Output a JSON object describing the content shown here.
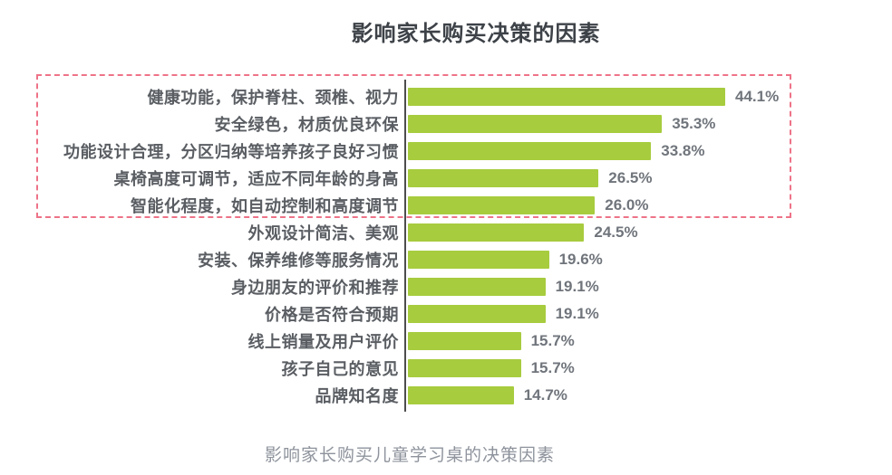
{
  "page": {
    "background": "#ffffff"
  },
  "chart_data": {
    "type": "bar",
    "orientation": "horizontal",
    "title": "影响家长购买决策的因素",
    "caption": "影响家长购买儿童学习桌的决策因素",
    "value_unit": "%",
    "xlim": [
      0,
      50
    ],
    "grid": false,
    "legend": null,
    "categories": [
      "健康功能，保护脊柱、颈椎、视力",
      "安全绿色，材质优良环保",
      "功能设计合理，分区归纳等培养孩子良好习惯",
      "桌椅高度可调节，适应不同年龄的身高",
      "智能化程度，如自动控制和高度调节",
      "外观设计简洁、美观",
      "安装、保养维修等服务情况",
      "身边朋友的评价和推荐",
      "价格是否符合预期",
      "线上销量及用户评价",
      "孩子自己的意见",
      "品牌知名度"
    ],
    "values": [
      44.1,
      35.3,
      33.8,
      26.5,
      26.0,
      24.5,
      19.6,
      19.1,
      19.1,
      15.7,
      15.7,
      14.7
    ],
    "value_labels": [
      "44.1%",
      "35.3%",
      "33.8%",
      "26.5%",
      "26.0%",
      "24.5%",
      "19.6%",
      "19.1%",
      "19.1%",
      "15.7%",
      "15.7%",
      "14.7%"
    ],
    "highlight": {
      "description": "dashed box emphasizing top 5 factors",
      "first_row": 0,
      "last_row": 4,
      "border_color": "#ee7388"
    },
    "colors": {
      "bar": "#a7cc3e",
      "axis": "#4d4d4d",
      "label_text": "#5a5e63",
      "value_text": "#70757c",
      "title_text": "#3d4248",
      "caption_text": "#8e939c"
    }
  }
}
